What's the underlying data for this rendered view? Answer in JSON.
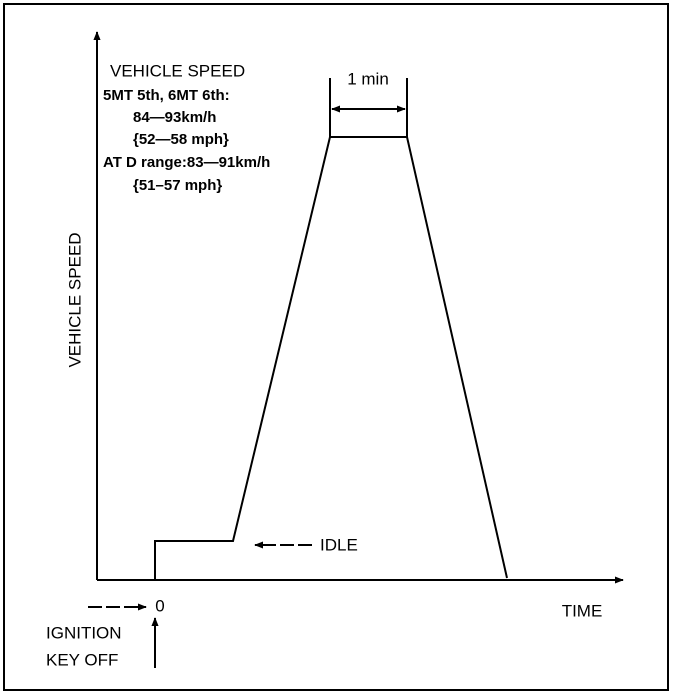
{
  "y_axis_label": "VEHICLE SPEED",
  "x_axis_label": "TIME",
  "origin_label": "0",
  "ignition_label": [
    "IGNITION",
    "KEY OFF"
  ],
  "idle_label": "IDLE",
  "duration_label": "1 min",
  "condition": {
    "title": "VEHICLE SPEED",
    "lines": [
      "5MT 5th, 6MT 6th:",
      "84—93km/h",
      "{52—58 mph}",
      "AT D range:83—91km/h",
      "{51–57 mph}"
    ]
  }
}
